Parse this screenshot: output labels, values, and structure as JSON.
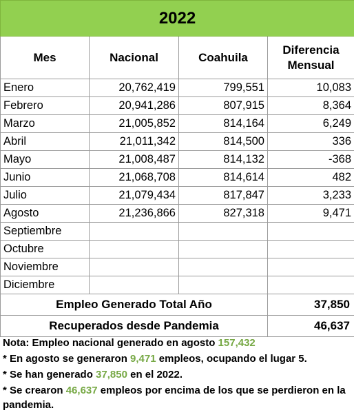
{
  "title": "2022",
  "headers": {
    "mes": "Mes",
    "nacional": "Nacional",
    "coahuila": "Coahuila",
    "diferencia_line1": "Diferencia",
    "diferencia_line2": "Mensual"
  },
  "rows": [
    {
      "mes": "Enero",
      "nacional": "20,762,419",
      "coahuila": "799,551",
      "diferencia": "10,083"
    },
    {
      "mes": "Febrero",
      "nacional": "20,941,286",
      "coahuila": "807,915",
      "diferencia": "8,364"
    },
    {
      "mes": "Marzo",
      "nacional": "21,005,852",
      "coahuila": "814,164",
      "diferencia": "6,249"
    },
    {
      "mes": "Abril",
      "nacional": "21,011,342",
      "coahuila": "814,500",
      "diferencia": "336"
    },
    {
      "mes": "Mayo",
      "nacional": "21,008,487",
      "coahuila": "814,132",
      "diferencia": "-368"
    },
    {
      "mes": "Junio",
      "nacional": "21,068,708",
      "coahuila": "814,614",
      "diferencia": "482"
    },
    {
      "mes": "Julio",
      "nacional": "21,079,434",
      "coahuila": "817,847",
      "diferencia": "3,233"
    },
    {
      "mes": "Agosto",
      "nacional": "21,236,866",
      "coahuila": "827,318",
      "diferencia": "9,471"
    },
    {
      "mes": "Septiembre",
      "nacional": "",
      "coahuila": "",
      "diferencia": ""
    },
    {
      "mes": "Octubre",
      "nacional": "",
      "coahuila": "",
      "diferencia": ""
    },
    {
      "mes": "Noviembre",
      "nacional": "",
      "coahuila": "",
      "diferencia": ""
    },
    {
      "mes": "Diciembre",
      "nacional": "",
      "coahuila": "",
      "diferencia": ""
    }
  ],
  "summary": {
    "generado_label": "Empleo Generado Total Año",
    "generado_value": "37,850",
    "recuperados_label": "Recuperados desde Pandemia",
    "recuperados_value": "46,637"
  },
  "notes": {
    "n1_a": "Nota: Empleo nacional generado en agosto ",
    "n1_b": "157,432",
    "n2_a": "*  En agosto se generaron ",
    "n2_b": "9,471",
    "n2_c": " empleos, ocupando el lugar 5.",
    "n3_a": "* Se han generado ",
    "n3_b": "37,850",
    "n3_c": " en el 2022.",
    "n4_a": "* Se crearon ",
    "n4_b": "46,637",
    "n4_c": " empleos por encima de los que se perdieron en la pandemia."
  },
  "colors": {
    "title_bg": "#92d050",
    "highlight_text": "#76a844"
  }
}
